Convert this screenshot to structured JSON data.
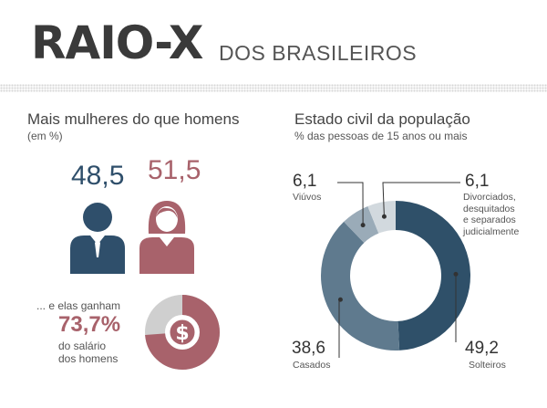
{
  "header": {
    "title": "RAIO-X",
    "subtitle": "DOS BRASILEIROS"
  },
  "gender": {
    "title": "Mais mulheres do que homens",
    "unit": "(em %)",
    "men_value": "48,5",
    "women_value": "51,5",
    "colors": {
      "men": "#2f4f6b",
      "women": "#a8626b"
    }
  },
  "salary": {
    "line1": "... e elas ganham",
    "value": "73,7%",
    "line2": "do salário",
    "line3": "dos homens",
    "fraction": 0.737,
    "icon": "dollar-icon",
    "colors": {
      "filled": "#a8626b",
      "rest": "#cfcfcf"
    }
  },
  "civil": {
    "title": "Estado civil da população",
    "subtitle": "% das pessoas de 15 anos ou mais"
  },
  "chart_data": {
    "type": "pie",
    "donut": true,
    "slices": [
      {
        "label": "Solteiros",
        "value": 49.2,
        "value_text": "49,2",
        "color": "#2f5069"
      },
      {
        "label": "Casados",
        "value": 38.6,
        "value_text": "38,6",
        "color": "#5f7a8e"
      },
      {
        "label": "Viúvos",
        "value": 6.1,
        "value_text": "6,1",
        "color": "#9aabb8"
      },
      {
        "label": "Divorciados, desquitados e separados judicialmente",
        "label_lines": [
          "Divorciados,",
          "desquitados",
          "e separados",
          "judicialmente"
        ],
        "value": 6.1,
        "value_text": "6,1",
        "color": "#d2d9de"
      }
    ]
  }
}
